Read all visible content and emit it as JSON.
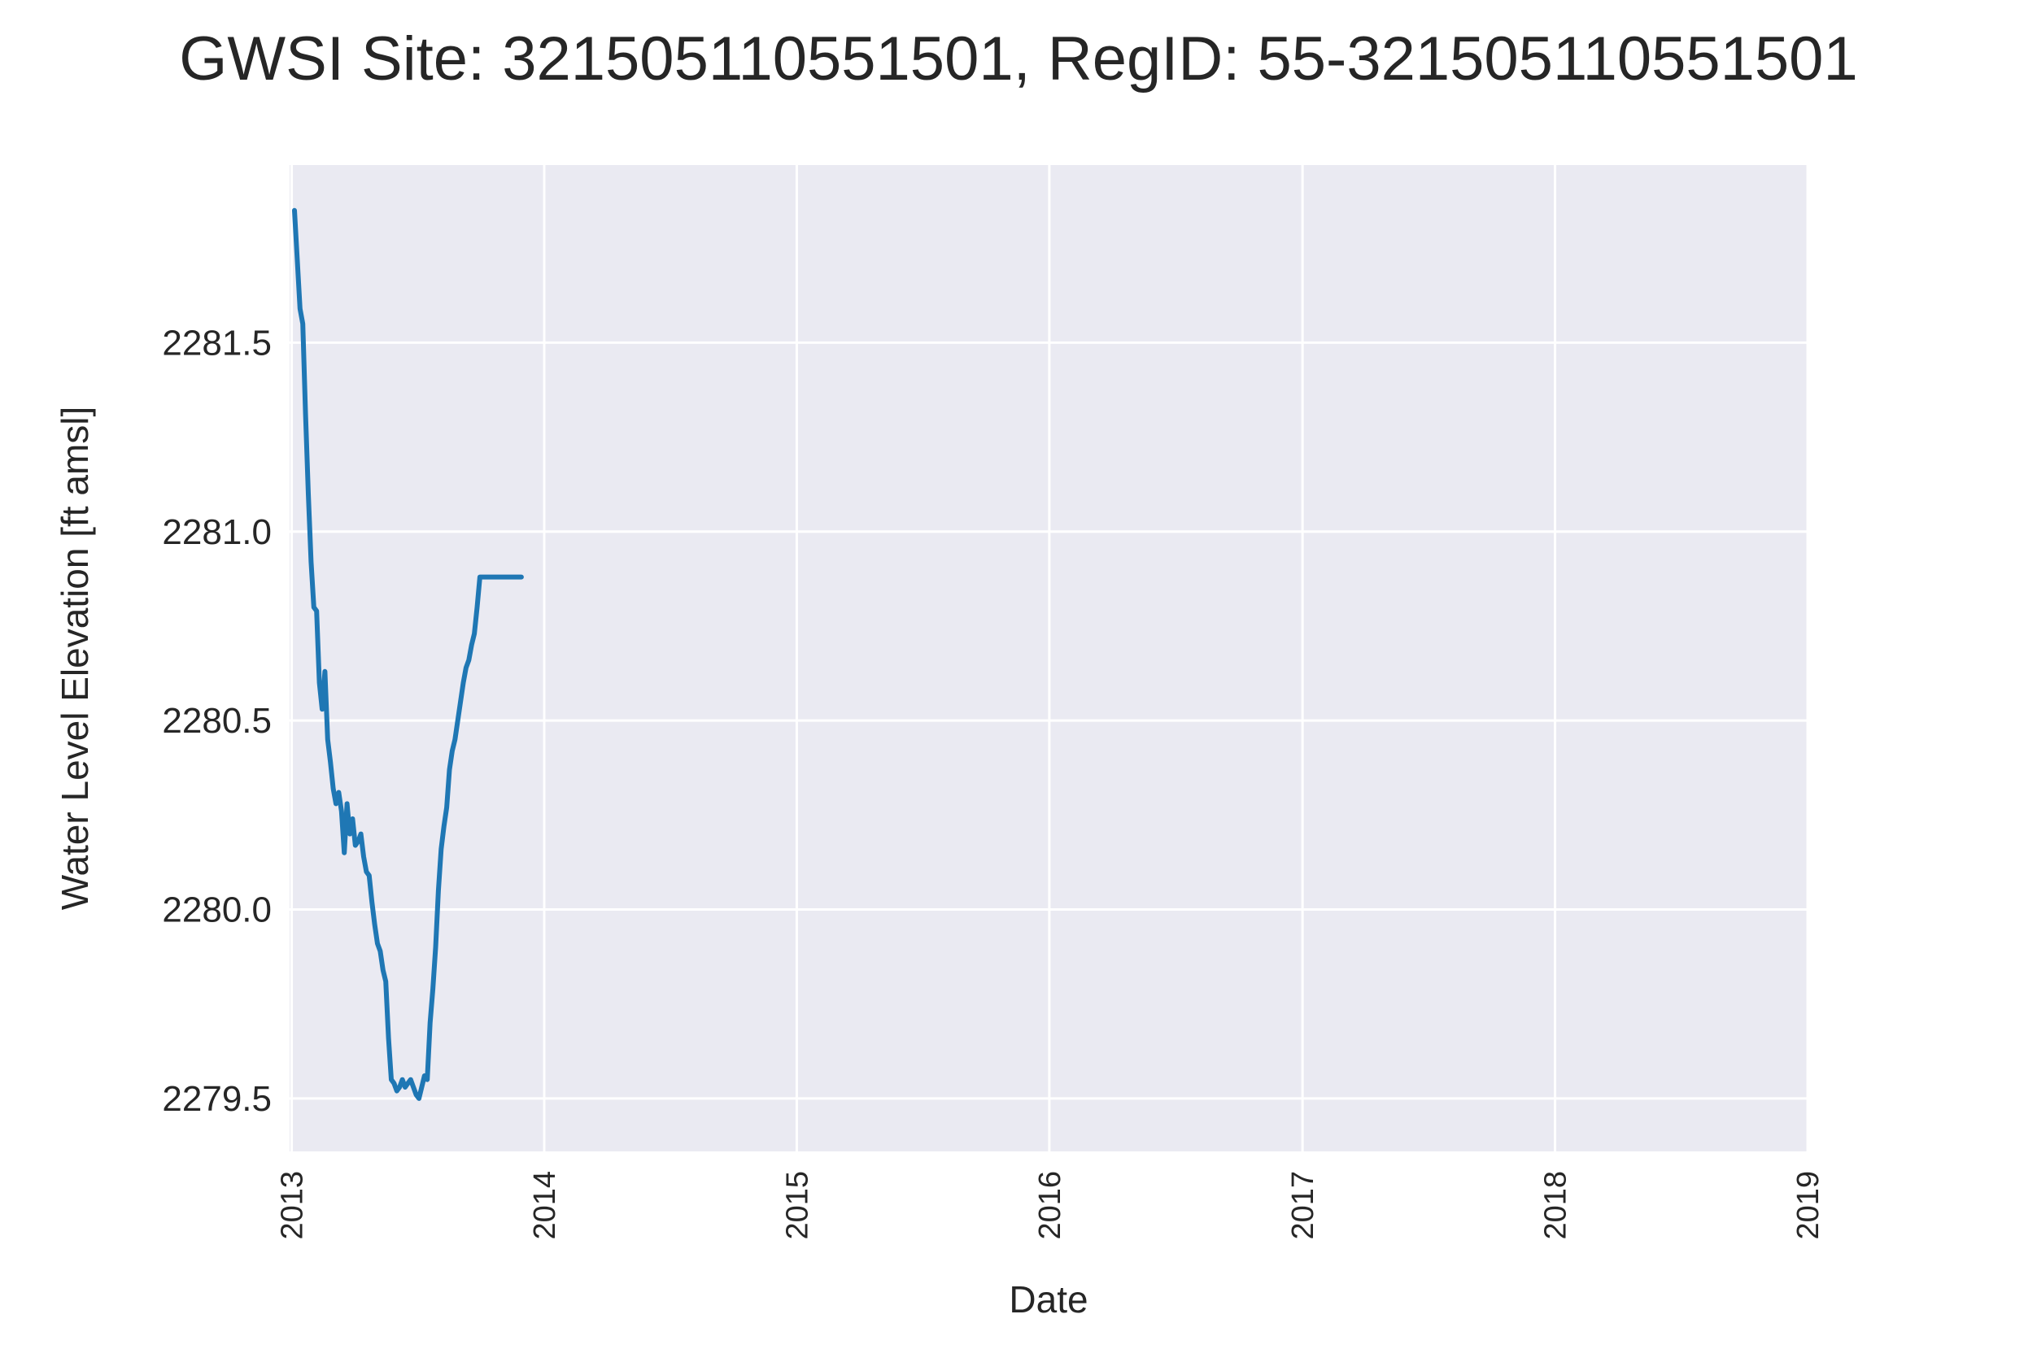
{
  "chart_data": {
    "type": "line",
    "title": "GWSI Site: 321505110551501, RegID: 55-321505110551501",
    "xlabel": "Date",
    "ylabel": "Water Level Elevation [ft amsl]",
    "x_ticks": [
      "2013",
      "2014",
      "2015",
      "2016",
      "2017",
      "2018",
      "2019"
    ],
    "y_ticks": [
      "2279.5",
      "2280.0",
      "2280.5",
      "2281.0",
      "2281.5"
    ],
    "xlim": [
      "2012-12-29",
      "2019-01-01"
    ],
    "ylim": [
      2279.36,
      2281.97
    ],
    "grid": true,
    "background_color": "#eaeaf2",
    "grid_color": "#ffffff",
    "series": [
      {
        "color": "#1f77b4",
        "x": [
          "2013-01-05",
          "2013-01-09",
          "2013-01-13",
          "2013-01-17",
          "2013-01-21",
          "2013-01-25",
          "2013-01-29",
          "2013-02-02",
          "2013-02-06",
          "2013-02-10",
          "2013-02-14",
          "2013-02-18",
          "2013-02-22",
          "2013-02-26",
          "2013-03-02",
          "2013-03-06",
          "2013-03-10",
          "2013-03-14",
          "2013-03-18",
          "2013-03-22",
          "2013-03-26",
          "2013-03-30",
          "2013-04-03",
          "2013-04-07",
          "2013-04-11",
          "2013-04-15",
          "2013-04-19",
          "2013-04-23",
          "2013-04-27",
          "2013-05-01",
          "2013-05-05",
          "2013-05-09",
          "2013-05-13",
          "2013-05-17",
          "2013-05-21",
          "2013-05-25",
          "2013-05-29",
          "2013-06-02",
          "2013-06-06",
          "2013-06-10",
          "2013-06-14",
          "2013-06-18",
          "2013-06-22",
          "2013-06-26",
          "2013-06-30",
          "2013-07-04",
          "2013-07-08",
          "2013-07-12",
          "2013-07-16",
          "2013-07-20",
          "2013-07-24",
          "2013-07-28",
          "2013-08-01",
          "2013-08-05",
          "2013-08-09",
          "2013-08-13",
          "2013-08-17",
          "2013-08-21",
          "2013-08-25",
          "2013-08-29",
          "2013-09-02",
          "2013-09-06",
          "2013-09-10",
          "2013-09-14",
          "2013-09-18",
          "2013-09-22",
          "2013-09-26",
          "2013-09-30",
          "2013-10-04",
          "2013-10-08",
          "2013-10-12",
          "2013-10-16",
          "2013-10-20",
          "2013-10-24",
          "2013-10-28",
          "2013-11-01",
          "2013-11-05",
          "2013-11-09",
          "2013-11-13",
          "2013-11-17",
          "2013-11-21",
          "2013-11-25",
          "2013-11-29"
        ],
        "y": [
          2281.85,
          2281.72,
          2281.59,
          2281.55,
          2281.31,
          2281.1,
          2280.92,
          2280.8,
          2280.79,
          2280.6,
          2280.53,
          2280.63,
          2280.45,
          2280.39,
          2280.32,
          2280.28,
          2280.31,
          2280.26,
          2280.15,
          2280.28,
          2280.2,
          2280.24,
          2280.17,
          2280.18,
          2280.2,
          2280.14,
          2280.1,
          2280.09,
          2280.02,
          2279.96,
          2279.91,
          2279.89,
          2279.84,
          2279.81,
          2279.66,
          2279.55,
          2279.54,
          2279.52,
          2279.53,
          2279.55,
          2279.53,
          2279.54,
          2279.55,
          2279.53,
          2279.51,
          2279.5,
          2279.53,
          2279.56,
          2279.55,
          2279.7,
          2279.79,
          2279.9,
          2280.05,
          2280.16,
          2280.22,
          2280.27,
          2280.37,
          2280.42,
          2280.45,
          2280.5,
          2280.55,
          2280.6,
          2280.64,
          2280.66,
          2280.7,
          2280.73,
          2280.8,
          2280.88,
          2280.88,
          2280.88,
          2280.88,
          2280.88,
          2280.88,
          2280.88,
          2280.88,
          2280.88,
          2280.88,
          2280.88,
          2280.88,
          2280.88,
          2280.88,
          2280.88,
          2280.88
        ]
      }
    ]
  }
}
